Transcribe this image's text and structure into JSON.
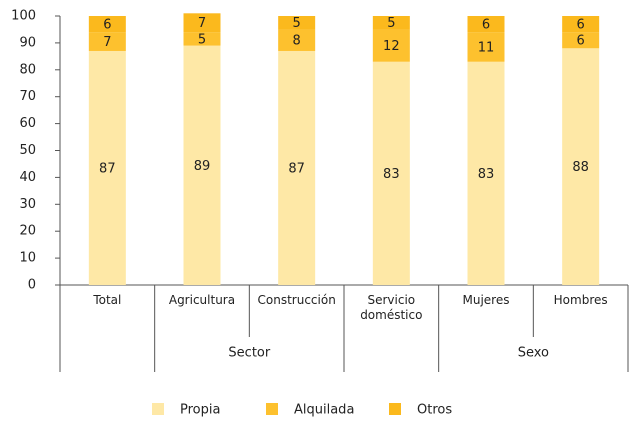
{
  "chart_data": {
    "type": "stacked-bar",
    "categories": [
      "Total",
      "Agricultura",
      "Construcción",
      "Servicio doméstico",
      "Mujeres",
      "Hombres"
    ],
    "category_groups": [
      null,
      "Sector",
      "Sector",
      null,
      "Sexo",
      "Sexo"
    ],
    "series": [
      {
        "name": "Propia",
        "color": "#fee8a6",
        "values": [
          87,
          89,
          87,
          83,
          83,
          88
        ]
      },
      {
        "name": "Alquilada",
        "color": "#fdc12e",
        "values": [
          7,
          5,
          8,
          12,
          11,
          6
        ]
      },
      {
        "name": "Otros",
        "color": "#fbb91d",
        "values": [
          6,
          7,
          5,
          5,
          6,
          6
        ]
      }
    ],
    "ylim": [
      0,
      100
    ],
    "yticks": [
      0,
      10,
      20,
      30,
      40,
      50,
      60,
      70,
      80,
      90,
      100
    ],
    "grid": false
  }
}
